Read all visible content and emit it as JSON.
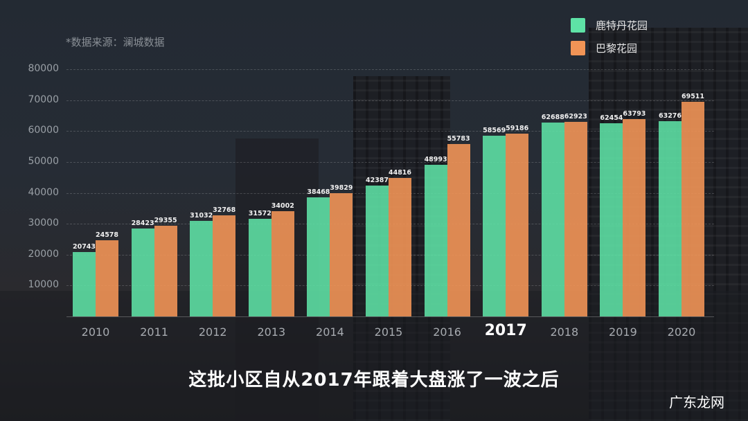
{
  "source_note": "*数据来源：澜城数据",
  "legend": [
    {
      "label": "鹿特丹花园",
      "color": "#5ee2a6"
    },
    {
      "label": "巴黎花园",
      "color": "#f19456"
    }
  ],
  "y_ticks": [
    "80000",
    "70000",
    "60000",
    "50000",
    "40000",
    "30000",
    "20000",
    "10000"
  ],
  "x_labels": [
    "2010",
    "2011",
    "2012",
    "2013",
    "2014",
    "2015",
    "2016",
    "2017",
    "2018",
    "2019",
    "2020"
  ],
  "highlight_year": "2017",
  "subtitle": "这批小区自从2017年跟着大盘涨了一波之后",
  "watermark": "广东龙网",
  "chart_data": {
    "type": "bar",
    "title": "",
    "xlabel": "",
    "ylabel": "",
    "ylim": [
      0,
      80000
    ],
    "grid": true,
    "legend_position": "top-right",
    "annotation": "*数据来源：澜城数据",
    "categories": [
      "2010",
      "2011",
      "2012",
      "2013",
      "2014",
      "2015",
      "2016",
      "2017",
      "2018",
      "2019",
      "2020"
    ],
    "series": [
      {
        "name": "鹿特丹花园",
        "color": "#5ee2a6",
        "values": [
          20743,
          28423,
          31032,
          31572,
          38468,
          42387,
          48993,
          58569,
          62688,
          62454,
          63276
        ]
      },
      {
        "name": "巴黎花园",
        "color": "#f19456",
        "values": [
          24578,
          29355,
          32768,
          34002,
          39829,
          44816,
          55783,
          59186,
          62923,
          63793,
          69511
        ]
      }
    ]
  }
}
